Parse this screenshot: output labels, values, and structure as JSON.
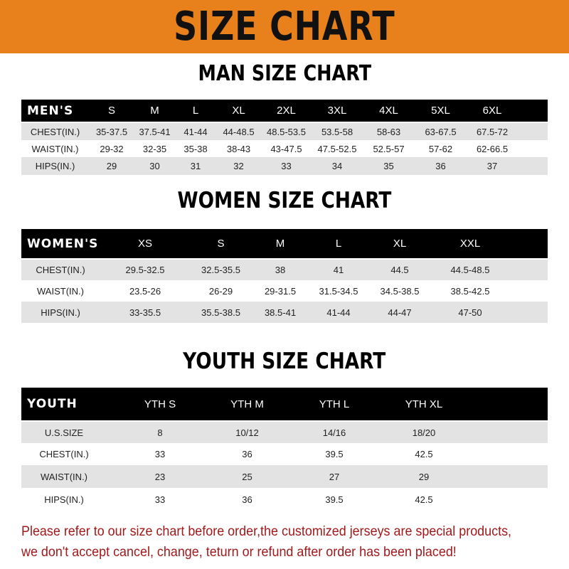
{
  "banner_title": "SIZE CHART",
  "colors": {
    "banner": "#e8801c",
    "header_row": "#000000",
    "stripe": "#e3e3e3",
    "note_text": "#a0191b"
  },
  "men": {
    "title": "MAN SIZE CHART",
    "columns": [
      "MEN'S",
      "S",
      "M",
      "L",
      "XL",
      "2XL",
      "3XL",
      "4XL",
      "5XL",
      "6XL"
    ],
    "rows": [
      [
        "CHEST(IN.)",
        "35-37.5",
        "37.5-41",
        "41-44",
        "44-48.5",
        "48.5-53.5",
        "53.5-58",
        "58-63",
        "63-67.5",
        "67.5-72"
      ],
      [
        "WAIST(IN.)",
        "29-32",
        "32-35",
        "35-38",
        "38-43",
        "43-47.5",
        "47.5-52.5",
        "52.5-57",
        "57-62",
        "62-66.5"
      ],
      [
        "HIPS(IN.)",
        "29",
        "30",
        "31",
        "32",
        "33",
        "34",
        "35",
        "36",
        "37"
      ]
    ]
  },
  "women": {
    "title": "WOMEN SIZE CHART",
    "columns": [
      "WOMEN'S",
      "XS",
      "S",
      "M",
      "L",
      "XL",
      "XXL"
    ],
    "rows": [
      [
        "CHEST(IN.)",
        "29.5-32.5",
        "32.5-35.5",
        "38",
        "41",
        "44.5",
        "44.5-48.5"
      ],
      [
        "WAIST(IN.)",
        "23.5-26",
        "26-29",
        "29-31.5",
        "31.5-34.5",
        "34.5-38.5",
        "38.5-42.5"
      ],
      [
        "HIPS(IN.)",
        "33-35.5",
        "35.5-38.5",
        "38.5-41",
        "41-44",
        "44-47",
        "47-50"
      ]
    ]
  },
  "youth": {
    "title": "YOUTH SIZE CHART",
    "columns": [
      "YOUTH",
      "YTH S",
      "YTH M",
      "YTH L",
      "YTH XL"
    ],
    "rows": [
      [
        "U.S.SIZE",
        "8",
        "10/12",
        "14/16",
        "18/20"
      ],
      [
        "CHEST(IN.)",
        "33",
        "36",
        "39.5",
        "42.5"
      ],
      [
        "WAIST(IN.)",
        "23",
        "25",
        "27",
        "29"
      ],
      [
        "HIPS(IN.)",
        "33",
        "36",
        "39.5",
        "42.5"
      ]
    ]
  },
  "note": {
    "line1": "Please refer to our size chart before order,the customized jerseys are special products,",
    "line2": "we don't accept cancel, change, teturn or refund after order has been placed!"
  }
}
